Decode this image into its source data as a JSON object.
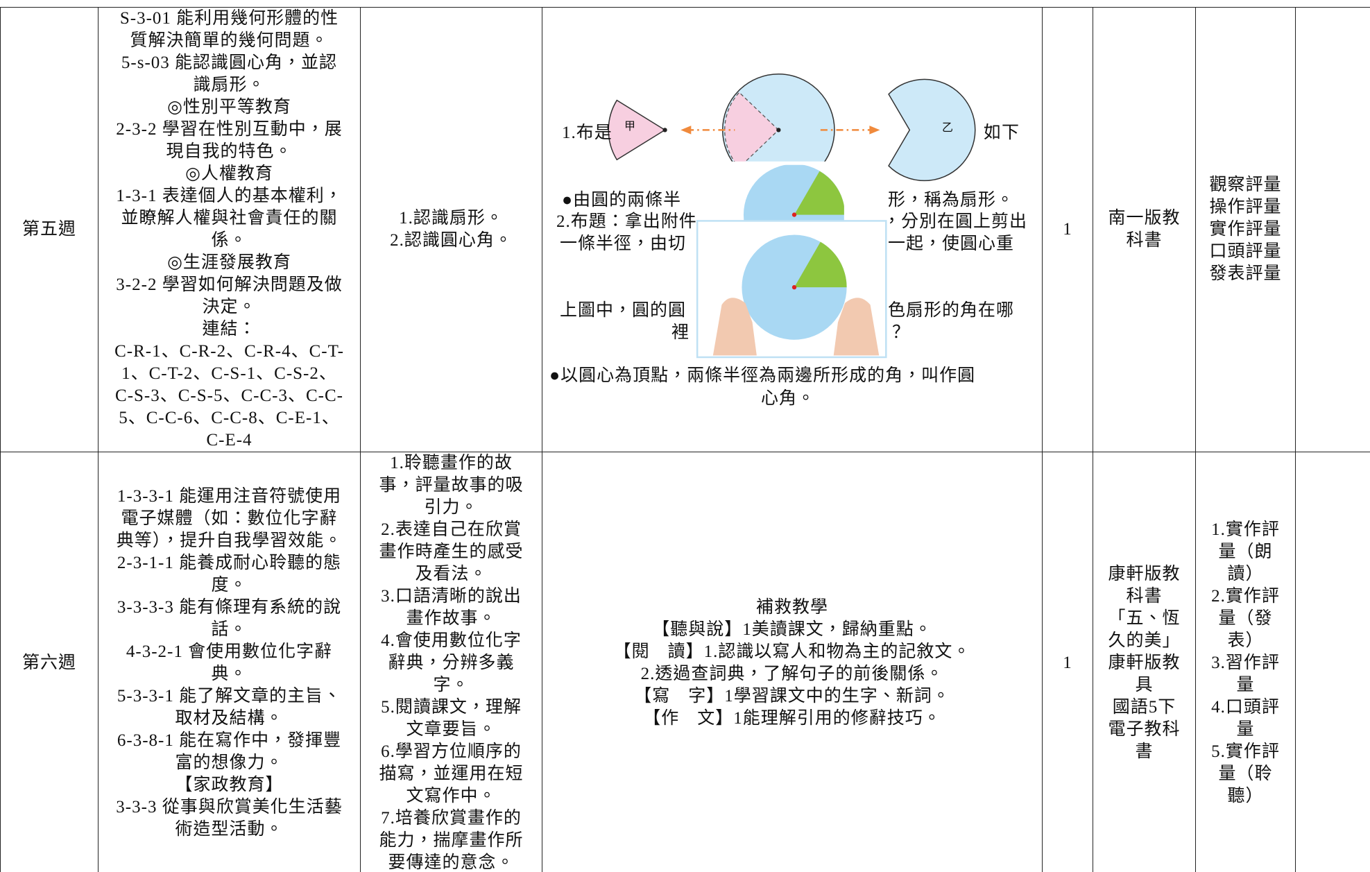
{
  "rows": [
    {
      "cells": [
        [
          "第五週"
        ],
        [
          "S-3-01 能利用幾何形體的性",
          "質解決簡單的幾何問題。",
          "5-s-03 能認識圓心角，並認",
          "識扇形。",
          "◎性別平等教育",
          "2-3-2 學習在性別互動中，展",
          "現自我的特色。",
          "◎人權教育",
          "1-3-1 表達個人的基本權利，",
          "並瞭解人權與社會責任的關",
          "係。",
          "◎生涯發展教育",
          "3-2-2 學習如何解決問題及做",
          "決定。",
          "連結：",
          "C-R-1、C-R-2、C-R-4、C-T-",
          "1、C-T-2、C-S-1、C-S-2、",
          "C-S-3、C-S-5、C-C-3、C-C-",
          "5、C-C-6、C-C-8、C-E-1、",
          "C-E-4"
        ],
        [
          "1.認識扇形。",
          "2.認識圓心角。"
        ],
        [
          "1.布是",
          "如下",
          "甲",
          "乙",
          "●由圓的兩條半",
          "形，稱為扇形。",
          "2.布題：拿出附件",
          "，分別在圓上剪出",
          "一條半徑，由切",
          "一起，使圓心重",
          "上圖中，圓的圓",
          "色扇形的角在哪",
          "裡",
          "？",
          "●以圓心為頂點，兩條半徑為兩邊所形成的角，叫作圓",
          "心角。"
        ],
        [
          "1"
        ],
        [
          "南一版教",
          "科書"
        ],
        [
          "觀察評量",
          "操作評量",
          "實作評量",
          "口頭評量",
          "發表評量"
        ],
        []
      ]
    },
    {
      "cells": [
        [
          "第六週"
        ],
        [
          "1-3-3-1 能運用注音符號使用",
          "電子媒體（如：數位化字辭",
          "典等），提升自我學習效能。",
          "2-3-1-1 能養成耐心聆聽的態",
          "度。",
          "3-3-3-3 能有條理有系統的說",
          "話。",
          "4-3-2-1 會使用數位化字辭",
          "典。",
          "5-3-3-1 能了解文章的主旨、",
          "取材及結構。",
          "6-3-8-1 能在寫作中，發揮豐",
          "富的想像力。",
          "【家政教育】",
          "3-3-3 從事與欣賞美化生活藝",
          "術造型活動。"
        ],
        [
          "1.聆聽畫作的故",
          "事，評量故事的吸",
          "引力。",
          "2.表達自己在欣賞",
          "畫作時產生的感受",
          "及看法。",
          "3.口語清晰的說出",
          "畫作故事。",
          "4.會使用數位化字",
          "辭典，分辨多義",
          "字。",
          "5.閱讀課文，理解",
          "文章要旨。",
          "6.學習方位順序的",
          "描寫，並運用在短",
          "文寫作中。",
          "7.培養欣賞畫作的",
          "能力，揣摩畫作所",
          "要傳達的意念。"
        ],
        [
          "補救教學",
          "【聽與說】1美讀課文，歸納重點。",
          "【閱　讀】1.認識以寫人和物為主的記敘文。",
          "2.透過查詞典，了解句子的前後關係。",
          "【寫　字】1學習課文中的生字、新詞。",
          "【作　文】1能理解引用的修辭技巧。"
        ],
        [
          "1"
        ],
        [
          "康軒版教",
          "科書",
          "「五、恆",
          "久的美」",
          "康軒版教",
          "具",
          "國語5下",
          "電子教科",
          "書"
        ],
        [
          "1.實作評",
          "量（朗",
          "讀）",
          "2.實作評",
          "量（發",
          "表）",
          "3.習作評",
          "量",
          "4.口頭評",
          "量",
          "5.實作評",
          "量（聆",
          "聽）"
        ],
        []
      ]
    }
  ]
}
